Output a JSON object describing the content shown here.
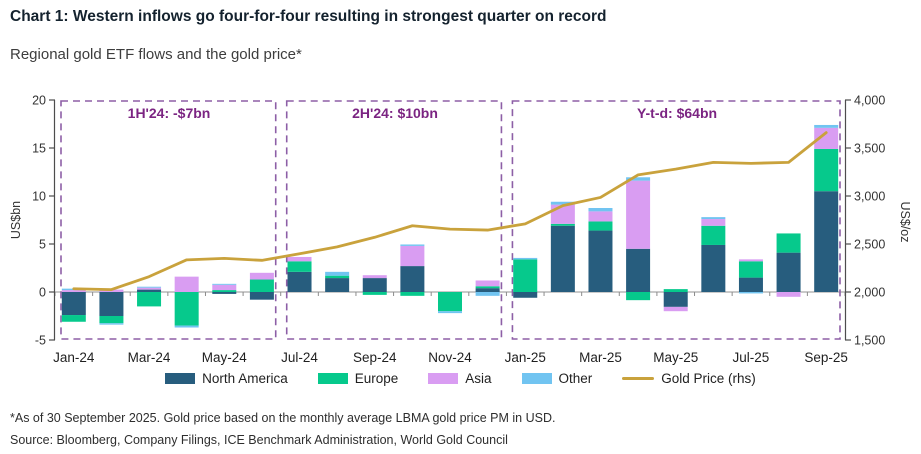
{
  "header": {
    "title": "Chart 1: Western inflows go four-for-four resulting in strongest quarter on record",
    "subtitle": "Regional gold ETF flows and the gold price*"
  },
  "footnotes": {
    "note": "*As of 30 September 2025. Gold price based on the monthly average LBMA gold price PM in USD.",
    "source": "Source: Bloomberg, Company Filings, ICE Benchmark Administration, World Gold Council"
  },
  "colors": {
    "north_america": "#275d7e",
    "europe": "#06c98c",
    "asia": "#d99df2",
    "other": "#71c4f1",
    "gold_line": "#c9a23c",
    "annotation_text": "#7b2482",
    "dashed_box": "#8d5fa6",
    "zero_line": "#c9c9c9",
    "axis_line": "#4d4d4d"
  },
  "chart_data": {
    "type": "bar",
    "stacked": true,
    "grid": false,
    "legend_position": "bottom",
    "categories": [
      "Jan-24",
      "Feb-24",
      "Mar-24",
      "Apr-24",
      "May-24",
      "Jun-24",
      "Jul-24",
      "Aug-24",
      "Sep-24",
      "Oct-24",
      "Nov-24",
      "Dec-24",
      "Jan-25",
      "Feb-25",
      "Mar-25",
      "Apr-25",
      "May-25",
      "Jun-25",
      "Jul-25",
      "Aug-25",
      "Sep-25"
    ],
    "x_label_every": 2,
    "series": [
      {
        "name": "North America",
        "color": "#275d7e",
        "values": [
          -2.4,
          -2.5,
          0.25,
          0,
          -0.2,
          -0.8,
          2.1,
          1.45,
          1.45,
          2.7,
          0,
          0.4,
          -0.6,
          6.9,
          6.4,
          4.5,
          -1.55,
          4.9,
          1.5,
          4.1,
          10.5
        ]
      },
      {
        "name": "Europe",
        "color": "#06c98c",
        "values": [
          -0.7,
          -0.75,
          -1.5,
          -3.5,
          0.2,
          1.3,
          1.1,
          0.25,
          -0.3,
          -0.4,
          -2.0,
          0.2,
          3.4,
          0.2,
          0.95,
          -0.85,
          0.3,
          2.0,
          1.7,
          2.0,
          4.4
        ]
      },
      {
        "name": "Asia",
        "color": "#d99df2",
        "values": [
          0.2,
          0.25,
          0.2,
          1.6,
          0.55,
          0.7,
          0.45,
          0,
          0.3,
          2.1,
          0,
          0.6,
          0,
          2.0,
          1.05,
          7.1,
          -0.45,
          0.7,
          0.2,
          -0.5,
          2.2
        ]
      },
      {
        "name": "Other",
        "color": "#71c4f1",
        "values": [
          0.15,
          -0.15,
          0.1,
          -0.2,
          0.1,
          0,
          0,
          0.4,
          0,
          0.15,
          -0.2,
          -0.4,
          0.15,
          0.3,
          0.35,
          0.35,
          0,
          0.2,
          -0.15,
          0,
          0.3
        ]
      }
    ],
    "line_series": {
      "name": "Gold Price (rhs)",
      "color": "#c9a23c",
      "axis": "right",
      "values": [
        2034,
        2025,
        2160,
        2335,
        2350,
        2330,
        2398,
        2470,
        2570,
        2690,
        2655,
        2645,
        2710,
        2900,
        2985,
        3220,
        3280,
        3350,
        3340,
        3350,
        3660
      ]
    },
    "left_axis": {
      "label": "US$bn",
      "min": -5,
      "max": 20,
      "ticks": [
        20,
        15,
        10,
        5,
        0,
        -5
      ]
    },
    "right_axis": {
      "label": "US$/oz",
      "min": 1500,
      "max": 4000,
      "ticks": [
        4000,
        3500,
        3000,
        2500,
        2000,
        1500
      ]
    },
    "annotations": [
      {
        "label": "1H'24: -$7bn",
        "start": 0,
        "end": 5
      },
      {
        "label": "2H'24: $10bn",
        "start": 6,
        "end": 11
      },
      {
        "label": "Y-t-d: $64bn",
        "start": 12,
        "end": 20
      }
    ]
  }
}
